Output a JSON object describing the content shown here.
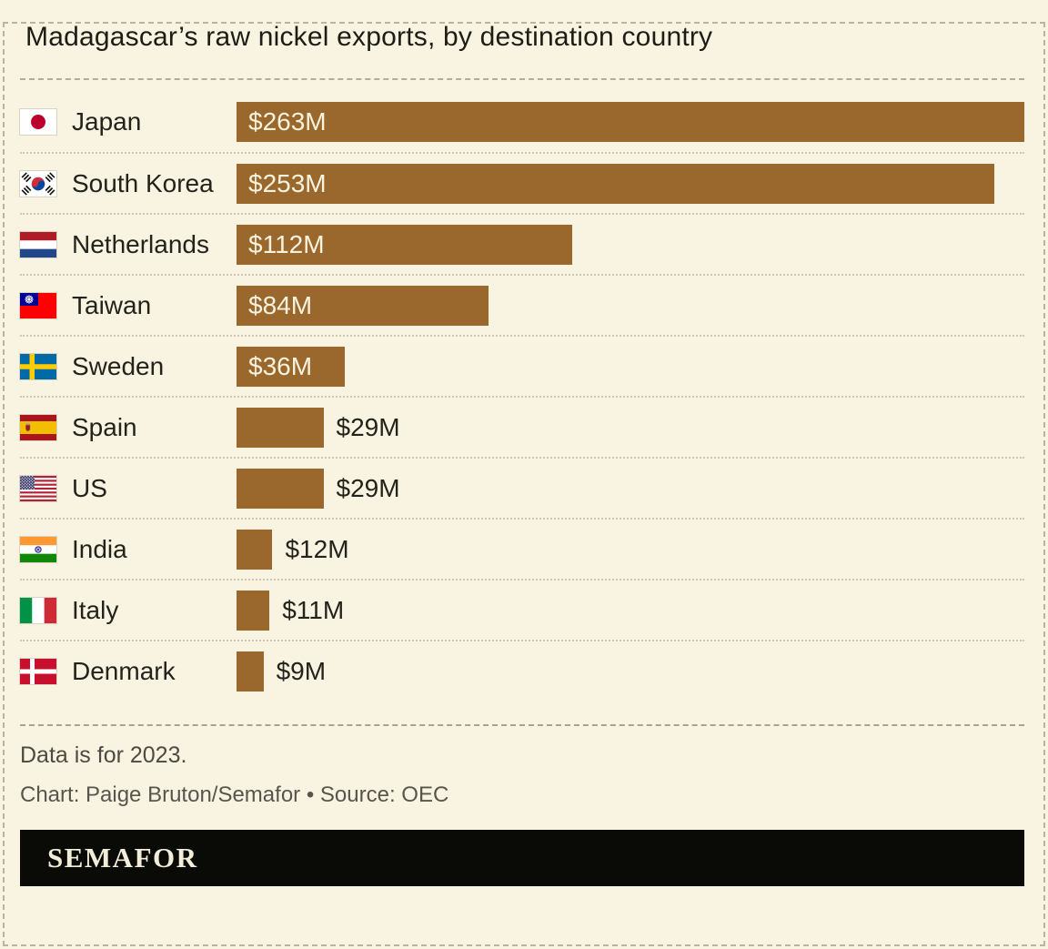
{
  "title": "Madagascar’s raw nickel exports, by destination country",
  "chart_data": {
    "type": "bar",
    "orientation": "horizontal",
    "title": "Madagascar’s raw nickel exports, by destination country",
    "categories": [
      "Japan",
      "South Korea",
      "Netherlands",
      "Taiwan",
      "Sweden",
      "Spain",
      "US",
      "India",
      "Italy",
      "Denmark"
    ],
    "values": [
      263,
      253,
      112,
      84,
      36,
      29,
      29,
      12,
      11,
      9
    ],
    "value_labels": [
      "$263M",
      "$253M",
      "$112M",
      "$84M",
      "$36M",
      "$29M",
      "$29M",
      "$12M",
      "$11M",
      "$9M"
    ],
    "unit": "USD millions",
    "xlim": [
      0,
      263
    ],
    "grid": false,
    "legend": false,
    "flag_icons": [
      "japan-flag-icon",
      "south-korea-flag-icon",
      "netherlands-flag-icon",
      "taiwan-flag-icon",
      "sweden-flag-icon",
      "spain-flag-icon",
      "us-flag-icon",
      "india-flag-icon",
      "italy-flag-icon",
      "denmark-flag-icon"
    ],
    "bar_color": "#9A672C"
  },
  "footer": {
    "note": "Data is for 2023.",
    "credit": "Chart: Paige Bruton/Semafor • Source: OEC"
  },
  "logo": {
    "text": "SEMAFOR"
  },
  "colors": {
    "background": "#F9F4E1",
    "bar": "#9A672C",
    "value_label_inside": "#F8F3DF",
    "value_label_outside": "#23231B",
    "banner_background": "#0A0A07",
    "banner_text": "#F2EDD8"
  }
}
